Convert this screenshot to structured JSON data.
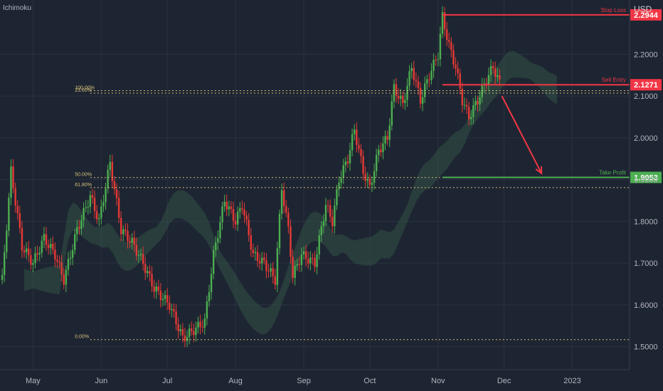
{
  "indicator_name": "Ichimoku",
  "currency": "USD",
  "colors": {
    "background": "#1e2532",
    "grid": "#2a3140",
    "up_candle": "#4caf50",
    "down_candle": "#e53935",
    "stop_loss": "#f23645",
    "entry": "#2962ff",
    "take_profit": "#4caf50",
    "fib_level": "#d4c07a",
    "axis_text": "#b2b5be",
    "cloud_green": "#3d6b4f",
    "cloud_red": "#6b3a42"
  },
  "chart_data": {
    "type": "candlestick",
    "title": "",
    "instrument_currency": "USD",
    "x_ticks": [
      "May",
      "Jun",
      "Jul",
      "Aug",
      "Sep",
      "Oct",
      "Nov",
      "Dec",
      "2023"
    ],
    "y_ticks": [
      1.5,
      1.6,
      1.7,
      1.8,
      1.9,
      2.0,
      2.1,
      2.2
    ],
    "y_tick_labels": [
      "1.5000",
      "1.6000",
      "1.7000",
      "1.8000",
      "1.9000",
      "2.0000",
      "2.1000",
      "2.2000"
    ],
    "ylim": [
      1.445,
      2.33
    ],
    "grid": true,
    "price_path": [
      {
        "day": -14,
        "price": 1.66
      },
      {
        "day": -10,
        "price": 1.92
      },
      {
        "day": -5,
        "price": 1.74
      },
      {
        "day": 0,
        "price": 1.7
      },
      {
        "day": 5,
        "price": 1.76
      },
      {
        "day": 10,
        "price": 1.72
      },
      {
        "day": 14,
        "price": 1.66
      },
      {
        "day": 20,
        "price": 1.78
      },
      {
        "day": 26,
        "price": 1.86
      },
      {
        "day": 30,
        "price": 1.8
      },
      {
        "day": 35,
        "price": 1.94
      },
      {
        "day": 40,
        "price": 1.78
      },
      {
        "day": 45,
        "price": 1.75
      },
      {
        "day": 50,
        "price": 1.7
      },
      {
        "day": 55,
        "price": 1.64
      },
      {
        "day": 62,
        "price": 1.6
      },
      {
        "day": 68,
        "price": 1.52
      },
      {
        "day": 73,
        "price": 1.54
      },
      {
        "day": 78,
        "price": 1.56
      },
      {
        "day": 82,
        "price": 1.72
      },
      {
        "day": 87,
        "price": 1.85
      },
      {
        "day": 92,
        "price": 1.8
      },
      {
        "day": 95,
        "price": 1.84
      },
      {
        "day": 100,
        "price": 1.72
      },
      {
        "day": 105,
        "price": 1.7
      },
      {
        "day": 110,
        "price": 1.66
      },
      {
        "day": 113,
        "price": 1.88
      },
      {
        "day": 116,
        "price": 1.78
      },
      {
        "day": 118,
        "price": 1.67
      },
      {
        "day": 122,
        "price": 1.72
      },
      {
        "day": 128,
        "price": 1.7
      },
      {
        "day": 133,
        "price": 1.84
      },
      {
        "day": 136,
        "price": 1.8
      },
      {
        "day": 139,
        "price": 1.9
      },
      {
        "day": 143,
        "price": 1.95
      },
      {
        "day": 146,
        "price": 2.02
      },
      {
        "day": 150,
        "price": 1.92
      },
      {
        "day": 153,
        "price": 1.88
      },
      {
        "day": 157,
        "price": 1.97
      },
      {
        "day": 161,
        "price": 2.0
      },
      {
        "day": 164,
        "price": 2.12
      },
      {
        "day": 168,
        "price": 2.08
      },
      {
        "day": 172,
        "price": 2.17
      },
      {
        "day": 176,
        "price": 2.09
      },
      {
        "day": 180,
        "price": 2.15
      },
      {
        "day": 184,
        "price": 2.2
      },
      {
        "day": 186,
        "price": 2.29
      },
      {
        "day": 189,
        "price": 2.22
      },
      {
        "day": 192,
        "price": 2.17
      },
      {
        "day": 195,
        "price": 2.09
      },
      {
        "day": 198,
        "price": 2.05
      },
      {
        "day": 202,
        "price": 2.09
      },
      {
        "day": 206,
        "price": 2.14
      },
      {
        "day": 209,
        "price": 2.17
      },
      {
        "day": 212,
        "price": 2.13
      }
    ],
    "candle_start_day": -14,
    "candle_end_day": 212,
    "x_axis_start_day": -15,
    "x_axis_end_day": 271,
    "month_start_days": [
      0,
      31,
      61,
      92,
      123,
      153,
      184,
      214,
      245
    ],
    "horizontal_levels": [
      {
        "name": "Stop Loss",
        "price": 2.2944,
        "label": "2.2944",
        "color": "#f23645"
      },
      {
        "name": "Sell Entry",
        "price": 2.1271,
        "label": "2.1271",
        "color": "#f23645"
      },
      {
        "name": "Take Profit",
        "price": 1.9053,
        "label": "1.9053",
        "color": "#4caf50"
      }
    ],
    "fib_levels": [
      {
        "label": "100.00%",
        "price": 2.113
      },
      {
        "label": "23.60%",
        "price": 2.107
      },
      {
        "label": "61.80%",
        "price": 1.881
      },
      {
        "label": "50.00%",
        "price": 1.905
      },
      {
        "label": "0.00%",
        "price": 1.517
      }
    ],
    "annotations": {
      "trend_arrow": {
        "from_day": 213,
        "from_price": 2.1,
        "to_day": 231,
        "to_price": 1.915
      }
    }
  }
}
